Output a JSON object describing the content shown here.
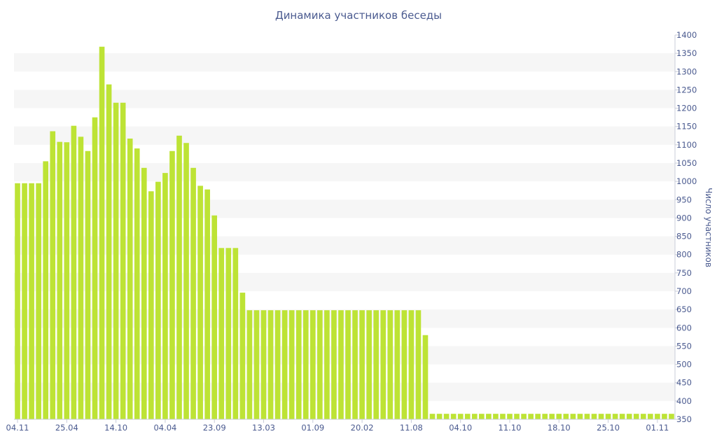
{
  "chart_data": {
    "type": "bar",
    "title": "Динамика участников беседы",
    "ylabel": "Число участников",
    "xlabel": "",
    "ylim": [
      350,
      1400
    ],
    "y_ticks": [
      350,
      400,
      450,
      500,
      550,
      600,
      650,
      700,
      750,
      800,
      850,
      900,
      950,
      1000,
      1050,
      1100,
      1150,
      1200,
      1250,
      1300,
      1350,
      1400
    ],
    "y_axis_position": "right",
    "grid": "alternating horizontal bands",
    "bar_color": "#bde335",
    "x_tick_labels": [
      {
        "index": 0,
        "label": "04.11"
      },
      {
        "index": 7,
        "label": "25.04"
      },
      {
        "index": 14,
        "label": "14.10"
      },
      {
        "index": 21,
        "label": "04.04"
      },
      {
        "index": 28,
        "label": "23.09"
      },
      {
        "index": 35,
        "label": "13.03"
      },
      {
        "index": 42,
        "label": "01.09"
      },
      {
        "index": 49,
        "label": "20.02"
      },
      {
        "index": 56,
        "label": "11.08"
      },
      {
        "index": 63,
        "label": "04.10"
      },
      {
        "index": 70,
        "label": "11.10"
      },
      {
        "index": 77,
        "label": "18.10"
      },
      {
        "index": 84,
        "label": "25.10"
      },
      {
        "index": 91,
        "label": "01.11"
      }
    ],
    "values": [
      995,
      995,
      995,
      995,
      1055,
      1137,
      1108,
      1107,
      1152,
      1122,
      1083,
      1175,
      1368,
      1265,
      1215,
      1215,
      1117,
      1090,
      1037,
      973,
      999,
      1023,
      1083,
      1125,
      1105,
      1037,
      988,
      978,
      907,
      818,
      818,
      818,
      696,
      648,
      648,
      648,
      648,
      648,
      648,
      648,
      648,
      648,
      648,
      648,
      648,
      648,
      648,
      648,
      648,
      648,
      648,
      648,
      648,
      648,
      648,
      648,
      648,
      648,
      580,
      365,
      365,
      365,
      365,
      365,
      365,
      365,
      365,
      365,
      365,
      365,
      365,
      365,
      365,
      365,
      365,
      365,
      365,
      365,
      365,
      365,
      365,
      365,
      365,
      365,
      365,
      365,
      365,
      365,
      365,
      365,
      365,
      365,
      365,
      365
    ]
  }
}
